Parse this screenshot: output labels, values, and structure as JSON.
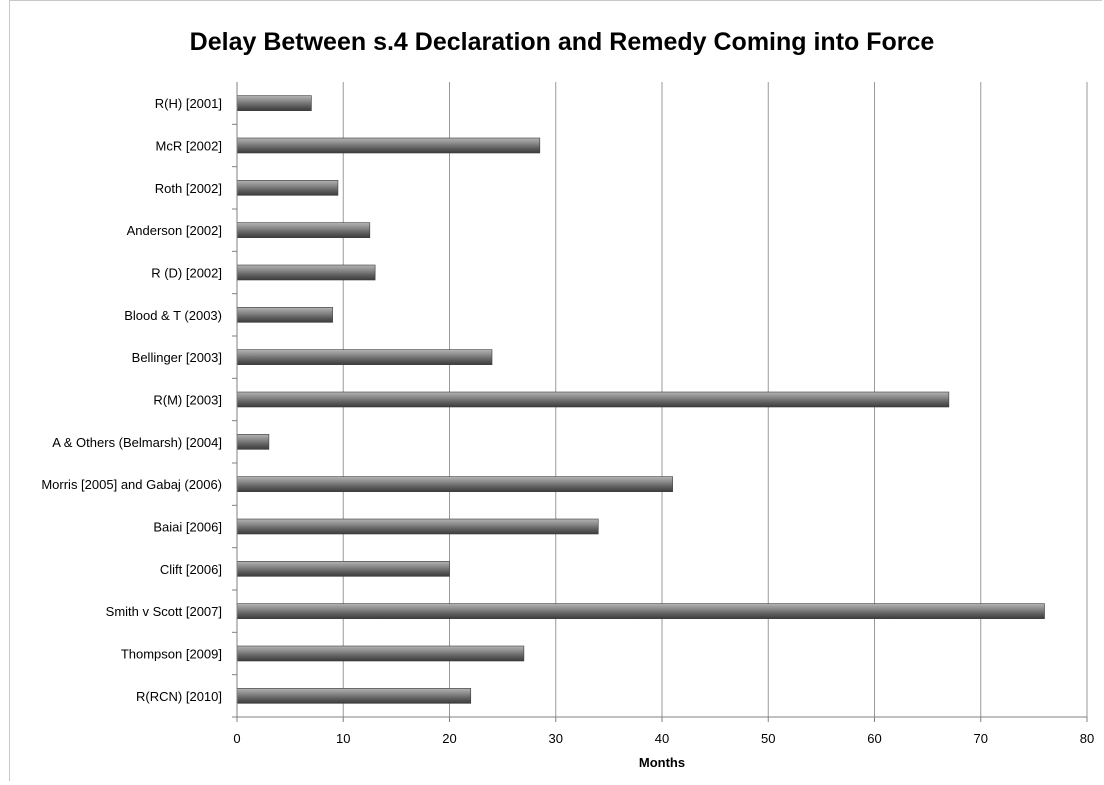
{
  "chart_data": {
    "type": "bar",
    "orientation": "horizontal",
    "title": "Delay Between s.4 Declaration and Remedy Coming into Force",
    "xlabel": "Months",
    "ylabel": "",
    "xlim": [
      0,
      80
    ],
    "xticks": [
      0,
      10,
      20,
      30,
      40,
      50,
      60,
      70,
      80
    ],
    "grid": "vertical",
    "bar_color": "#6e6e6e",
    "categories": [
      "R(H) [2001]",
      "McR [2002]",
      "Roth [2002]",
      "Anderson [2002]",
      "R (D) [2002]",
      "Blood & T (2003)",
      "Bellinger [2003]",
      "R(M) [2003]",
      "A & Others (Belmarsh) [2004]",
      "Morris [2005] and Gabaj (2006)",
      "Baiai [2006]",
      "Clift [2006]",
      "Smith v Scott [2007]",
      "Thompson [2009]",
      "R(RCN) [2010]"
    ],
    "values": [
      7,
      28.5,
      9.5,
      12.5,
      13,
      9,
      24,
      67,
      3,
      41,
      34,
      20,
      76,
      27,
      22
    ]
  }
}
